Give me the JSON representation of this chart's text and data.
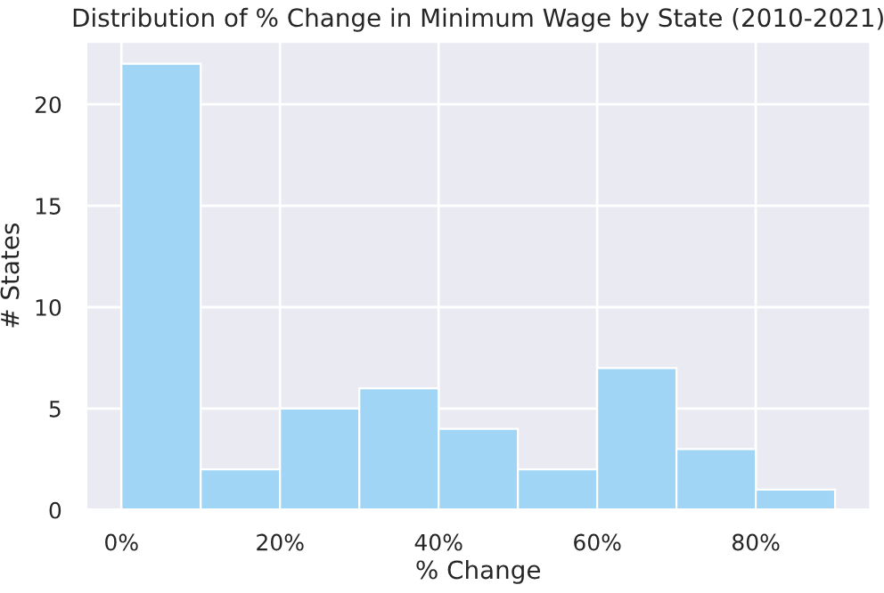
{
  "chart_data": {
    "type": "histogram",
    "title": "Distribution of % Change in Minimum Wage by State (2010-2021)",
    "xlabel": "% Change",
    "ylabel": "# States",
    "bins": [
      0,
      10,
      20,
      30,
      40,
      50,
      60,
      70,
      80,
      90
    ],
    "values": [
      22,
      2,
      5,
      6,
      4,
      2,
      7,
      3,
      1
    ],
    "color": "#a1d5f6",
    "xlim": [
      -4.5,
      94.5
    ],
    "xticks": [
      {
        "value": 0,
        "label": "0%"
      },
      {
        "value": 20,
        "label": "20%"
      },
      {
        "value": 40,
        "label": "40%"
      },
      {
        "value": 60,
        "label": "60%"
      },
      {
        "value": 80,
        "label": "80%"
      }
    ],
    "ylim": [
      0,
      23.1
    ],
    "yticks": [
      0,
      5,
      10,
      15,
      20
    ],
    "grid": true
  }
}
